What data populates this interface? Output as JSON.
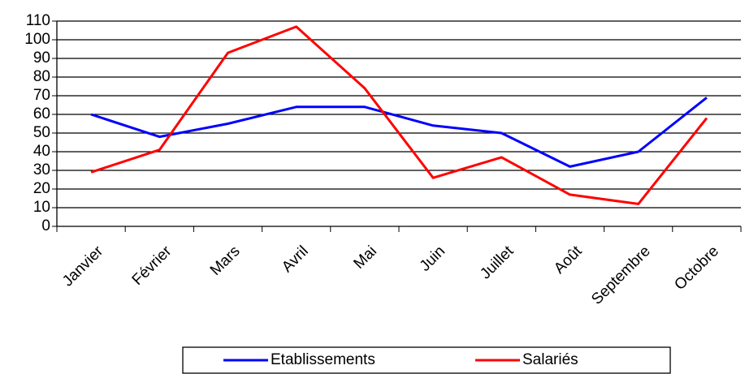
{
  "chart_data": {
    "type": "line",
    "categories": [
      "Janvier",
      "Février",
      "Mars",
      "Avril",
      "Mai",
      "Juin",
      "Juillet",
      "Août",
      "Septembre",
      "Octobre"
    ],
    "series": [
      {
        "name": "Etablissements",
        "color": "#0000ff",
        "values": [
          60,
          48,
          55,
          64,
          64,
          54,
          50,
          32,
          40,
          69
        ]
      },
      {
        "name": "Salariés",
        "color": "#ff0000",
        "values": [
          29,
          41,
          93,
          107,
          74,
          26,
          37,
          17,
          12,
          58
        ]
      }
    ],
    "ylim": [
      0,
      110
    ],
    "yticks": [
      0,
      10,
      20,
      30,
      40,
      50,
      60,
      70,
      80,
      90,
      100,
      110
    ],
    "grid": true,
    "legend": "bottom"
  }
}
